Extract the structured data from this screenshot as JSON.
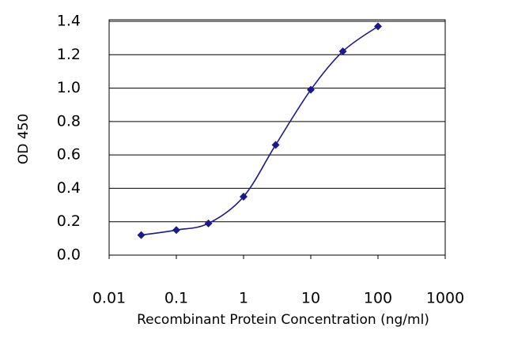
{
  "chart_data": {
    "type": "line",
    "x": [
      0.03,
      0.1,
      0.3,
      1,
      3,
      10,
      30,
      100
    ],
    "values": [
      0.12,
      0.15,
      0.19,
      0.35,
      0.66,
      0.99,
      1.22,
      1.37
    ],
    "color": "#1a1a8c",
    "xlabel": "Recombinant Protein Concentration (ng/ml)",
    "ylabel": "OD 450",
    "xscale": "log",
    "xlim": [
      0.01,
      1000
    ],
    "xticks": [
      0.01,
      0.1,
      1,
      10,
      100,
      1000
    ],
    "ylim": [
      0,
      1.4
    ],
    "yticks": [
      {
        "value": 0,
        "label": "0.0"
      },
      0.2,
      0.4,
      0.6,
      0.8,
      {
        "value": 1,
        "label": "1.0"
      },
      1.2,
      1.4
    ],
    "grid": true
  }
}
